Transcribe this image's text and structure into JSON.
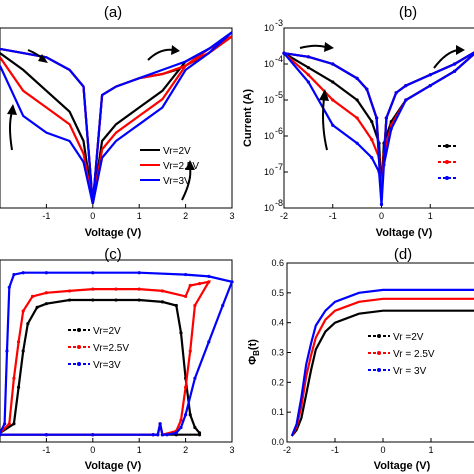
{
  "chart_data": [
    {
      "panel": "(a)",
      "type": "line",
      "xlabel": "Voltage (V)",
      "ylabel": "",
      "xlim": [
        -2,
        3
      ],
      "ylim": [
        -7.6,
        -3.3
      ],
      "yscale": "log",
      "xticks": [
        "-1",
        "0",
        "1",
        "2",
        "3"
      ],
      "legend_position": "lower-right",
      "series": [
        {
          "name": "Vr=2V",
          "color": "#000000",
          "x": [
            -2,
            -1.5,
            -1,
            -0.5,
            -0.2,
            0,
            0.2,
            0.5,
            1,
            1.5,
            1.8,
            2,
            2.5,
            3,
            2.5,
            2,
            1.5,
            1,
            0.5,
            0.2,
            0,
            -0.2,
            -0.5,
            -1,
            -1.5,
            -2
          ],
          "y": [
            -3.8,
            -3.9,
            -4.0,
            -4.3,
            -4.7,
            -7.5,
            -4.9,
            -4.7,
            -4.5,
            -4.4,
            -4.3,
            -4.2,
            -3.9,
            -3.5,
            -3.8,
            -4.1,
            -4.8,
            -5.2,
            -5.6,
            -6.0,
            -7.5,
            -6.0,
            -5.3,
            -4.8,
            -4.3,
            -3.9
          ]
        },
        {
          "name": "Vr=2.5V",
          "color": "#ff0000",
          "x": [
            -2,
            -1.5,
            -1,
            -0.5,
            -0.2,
            0,
            0.2,
            0.5,
            1,
            1.5,
            2,
            2.3,
            2.5,
            3,
            2.5,
            2,
            1.5,
            1,
            0.5,
            0.2,
            0,
            -0.2,
            -0.5,
            -1,
            -1.5,
            -2
          ],
          "y": [
            -3.8,
            -3.9,
            -4.0,
            -4.3,
            -4.7,
            -7.5,
            -4.9,
            -4.7,
            -4.5,
            -4.4,
            -4.2,
            -4.0,
            -3.9,
            -3.5,
            -3.8,
            -4.2,
            -5.0,
            -5.4,
            -5.8,
            -6.2,
            -7.5,
            -6.3,
            -5.6,
            -5.2,
            -4.8,
            -4.0
          ]
        },
        {
          "name": "Vr=3V",
          "color": "#0000ff",
          "x": [
            -2,
            -1.5,
            -1,
            -0.5,
            -0.2,
            0,
            0.2,
            0.5,
            1,
            1.5,
            2,
            2.5,
            3,
            2.5,
            2,
            1.5,
            1,
            0.5,
            0.2,
            0,
            -0.2,
            -0.5,
            -1,
            -1.5,
            -2
          ],
          "y": [
            -3.8,
            -3.9,
            -4.0,
            -4.3,
            -4.7,
            -7.5,
            -4.9,
            -4.7,
            -4.5,
            -4.3,
            -4.1,
            -3.8,
            -3.4,
            -3.9,
            -4.3,
            -5.2,
            -5.6,
            -6.0,
            -6.4,
            -7.5,
            -6.5,
            -6.0,
            -5.8,
            -5.4,
            -4.2
          ]
        }
      ]
    },
    {
      "panel": "(b)",
      "type": "line",
      "xlabel": "Voltage (V)",
      "ylabel": "Current (A)",
      "xlim": [
        -2,
        2
      ],
      "ylim": [
        -8,
        -3
      ],
      "yscale": "log",
      "xticks": [
        "-2",
        "-1",
        "0",
        "1"
      ],
      "yticks": [
        "10-8",
        "10-7",
        "10-6",
        "10-5",
        "10-4",
        "10-3"
      ],
      "legend_position": "lower-right",
      "series": [
        {
          "name": "",
          "color": "#000000",
          "x": [
            -2,
            -1.5,
            -1,
            -0.5,
            -0.3,
            -0.1,
            0,
            0.1,
            0.3,
            0.5,
            1,
            1.5,
            2,
            1.5,
            1,
            0.5,
            0.2,
            0.05,
            0,
            -0.05,
            -0.2,
            -0.5,
            -1,
            -1.5,
            -2
          ],
          "y": [
            -3.7,
            -3.8,
            -4.0,
            -4.4,
            -4.7,
            -5.5,
            -7.5,
            -5.5,
            -4.8,
            -4.6,
            -4.3,
            -4.0,
            -3.6,
            -4.2,
            -4.6,
            -5.0,
            -5.6,
            -6.2,
            -7.5,
            -6.2,
            -5.6,
            -5.0,
            -4.5,
            -4.1,
            -3.7
          ]
        },
        {
          "name": "",
          "color": "#ff0000",
          "x": [
            -2,
            -1.5,
            -1,
            -0.5,
            -0.3,
            -0.1,
            0,
            0.1,
            0.3,
            0.5,
            1,
            1.5,
            2,
            1.5,
            1,
            0.5,
            0.2,
            0.05,
            0,
            -0.05,
            -0.2,
            -0.5,
            -1,
            -1.5,
            -2
          ],
          "y": [
            -3.7,
            -3.8,
            -4.0,
            -4.4,
            -4.7,
            -5.5,
            -7.7,
            -5.5,
            -4.8,
            -4.6,
            -4.3,
            -4.0,
            -3.6,
            -4.2,
            -4.6,
            -5.0,
            -5.7,
            -6.5,
            -7.7,
            -6.6,
            -6.1,
            -5.5,
            -5.0,
            -4.3,
            -3.7
          ]
        },
        {
          "name": "",
          "color": "#0000ff",
          "x": [
            -2,
            -1.5,
            -1,
            -0.5,
            -0.3,
            -0.1,
            0,
            0.1,
            0.3,
            0.5,
            1,
            1.5,
            2,
            1.5,
            1,
            0.5,
            0.2,
            0.05,
            0,
            -0.05,
            -0.2,
            -0.5,
            -1,
            -1.5,
            -2
          ],
          "y": [
            -3.7,
            -3.8,
            -4.0,
            -4.4,
            -4.7,
            -5.5,
            -7.9,
            -5.5,
            -4.8,
            -4.6,
            -4.3,
            -4.0,
            -3.6,
            -4.2,
            -4.6,
            -5.0,
            -5.8,
            -6.8,
            -7.9,
            -7.0,
            -6.6,
            -6.2,
            -5.7,
            -4.5,
            -3.7
          ]
        }
      ]
    },
    {
      "panel": "(c)",
      "type": "line",
      "xlabel": "Voltage (V)",
      "ylabel": "",
      "xlim": [
        -2,
        3
      ],
      "ylim": [
        0,
        1
      ],
      "xticks": [
        "-1",
        "0",
        "1",
        "2",
        "3"
      ],
      "legend_position": "center",
      "series": [
        {
          "name": "Vr=2V",
          "color": "#000000",
          "x": [
            -2,
            -1.7,
            -1.6,
            -1.5,
            -1.4,
            -1.2,
            -1,
            -0.5,
            0,
            0.5,
            1,
            1.5,
            1.8,
            1.9,
            2,
            2.1,
            2.2,
            2.3,
            2.3,
            1.8,
            1.5,
            1.45,
            1.4,
            1.3,
            0,
            -1,
            -2
          ],
          "y": [
            0.05,
            0.1,
            0.3,
            0.5,
            0.65,
            0.74,
            0.76,
            0.78,
            0.78,
            0.78,
            0.78,
            0.77,
            0.75,
            0.6,
            0.35,
            0.15,
            0.08,
            0.05,
            0.04,
            0.04,
            0.04,
            0.1,
            0.04,
            0.04,
            0.04,
            0.04,
            0.04
          ]
        },
        {
          "name": "Vr=2.5V",
          "color": "#ff0000",
          "x": [
            -2,
            -1.8,
            -1.7,
            -1.6,
            -1.5,
            -1.3,
            -1,
            -0.5,
            0,
            0.5,
            1,
            1.5,
            2,
            2.1,
            2.3,
            2.5,
            2.2,
            2.1,
            2,
            1.9,
            1.8,
            1.5,
            1.45,
            1.4,
            1.3,
            0,
            -1,
            -2
          ],
          "y": [
            0.05,
            0.1,
            0.35,
            0.55,
            0.72,
            0.8,
            0.82,
            0.83,
            0.84,
            0.84,
            0.84,
            0.83,
            0.8,
            0.86,
            0.87,
            0.88,
            0.75,
            0.5,
            0.3,
            0.12,
            0.06,
            0.04,
            0.1,
            0.04,
            0.04,
            0.04,
            0.04,
            0.04
          ]
        },
        {
          "name": "Vr=3V",
          "color": "#0000ff",
          "x": [
            -2,
            -1.9,
            -1.85,
            -1.8,
            -1.7,
            -1.5,
            -1,
            0,
            1,
            2,
            2.5,
            3,
            2.8,
            2.5,
            2.2,
            2,
            1.9,
            1.8,
            1.6,
            1.5,
            1.45,
            1.4,
            1.3,
            0,
            -1,
            -2
          ],
          "y": [
            0.05,
            0.1,
            0.5,
            0.85,
            0.92,
            0.93,
            0.93,
            0.93,
            0.93,
            0.92,
            0.91,
            0.88,
            0.75,
            0.55,
            0.35,
            0.15,
            0.08,
            0.05,
            0.04,
            0.04,
            0.1,
            0.04,
            0.04,
            0.04,
            0.04,
            0.04
          ]
        }
      ]
    },
    {
      "panel": "(d)",
      "type": "line",
      "xlabel": "Voltage (V)",
      "ylabel": "ΦB(t)",
      "xlim": [
        -2,
        2
      ],
      "ylim": [
        0,
        0.6
      ],
      "xticks": [
        "-2",
        "-1",
        "0",
        "1"
      ],
      "yticks": [
        "0.0",
        "0.1",
        "0.2",
        "0.3",
        "0.4",
        "0.5",
        "0.6"
      ],
      "legend_position": "center-right",
      "series": [
        {
          "name": "Vr =2V",
          "color": "#000000",
          "x": [
            -1.9,
            -1.8,
            -1.7,
            -1.6,
            -1.5,
            -1.4,
            -1.2,
            -1,
            -0.5,
            0,
            0.5,
            1,
            1.5,
            2
          ],
          "y": [
            0.02,
            0.04,
            0.08,
            0.16,
            0.24,
            0.31,
            0.37,
            0.4,
            0.43,
            0.44,
            0.44,
            0.44,
            0.44,
            0.44
          ]
        },
        {
          "name": "Vr = 2.5V",
          "color": "#ff0000",
          "x": [
            -1.9,
            -1.8,
            -1.7,
            -1.6,
            -1.5,
            -1.4,
            -1.2,
            -1,
            -0.5,
            0,
            0.5,
            1,
            1.5,
            2
          ],
          "y": [
            0.02,
            0.05,
            0.12,
            0.22,
            0.29,
            0.35,
            0.41,
            0.44,
            0.47,
            0.48,
            0.48,
            0.48,
            0.48,
            0.48
          ]
        },
        {
          "name": "Vr = 3V",
          "color": "#0000ff",
          "x": [
            -1.9,
            -1.8,
            -1.7,
            -1.6,
            -1.5,
            -1.4,
            -1.2,
            -1,
            -0.5,
            0,
            0.5,
            1,
            1.5,
            2
          ],
          "y": [
            0.02,
            0.06,
            0.15,
            0.26,
            0.33,
            0.39,
            0.44,
            0.47,
            0.5,
            0.51,
            0.51,
            0.51,
            0.51,
            0.51
          ]
        }
      ]
    }
  ]
}
